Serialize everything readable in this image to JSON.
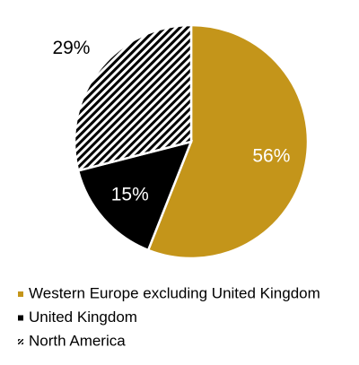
{
  "chart_data": {
    "type": "pie",
    "categories": [
      "Western Europe excluding United Kingdom",
      "United Kingdom",
      "North America"
    ],
    "values": [
      56,
      15,
      29
    ],
    "value_labels": [
      "56%",
      "15%",
      "29%"
    ],
    "colors": [
      "#c4951a",
      "#000000",
      "hatch"
    ]
  }
}
